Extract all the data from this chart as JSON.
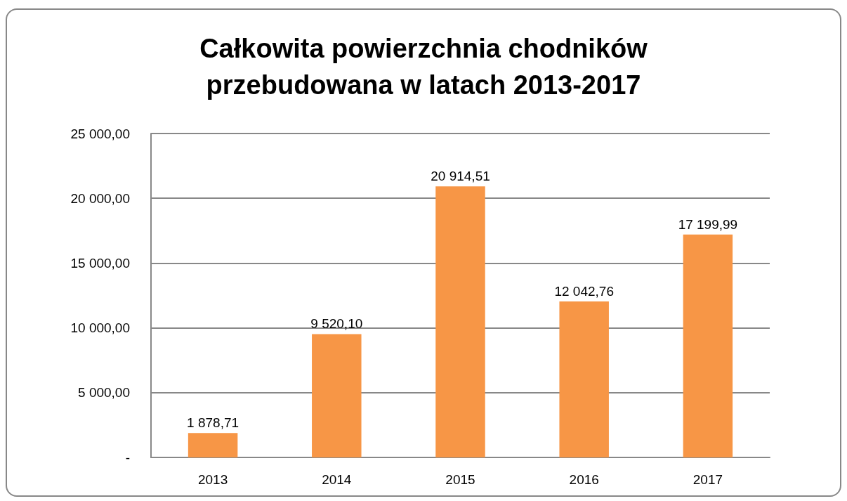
{
  "chart_data": {
    "type": "bar",
    "title": "Całkowita powierzchnia chodników\nprzebudowana w latach 2013-2017",
    "categories": [
      "2013",
      "2014",
      "2015",
      "2016",
      "2017"
    ],
    "values": [
      1878.71,
      9520.1,
      20914.51,
      12042.76,
      17199.99
    ],
    "value_labels": [
      "1 878,71",
      "9 520,10",
      "20 914,51",
      "12 042,76",
      "17 199,99"
    ],
    "color": "#f79646",
    "ylim": [
      0,
      25000
    ],
    "yticks": [
      {
        "value": 0,
        "label": "-"
      },
      {
        "value": 5000,
        "label": "5 000,00"
      },
      {
        "value": 10000,
        "label": "10 000,00"
      },
      {
        "value": 15000,
        "label": "15 000,00"
      },
      {
        "value": 20000,
        "label": "20 000,00"
      },
      {
        "value": 25000,
        "label": "25 000,00"
      }
    ],
    "grid": "y"
  }
}
